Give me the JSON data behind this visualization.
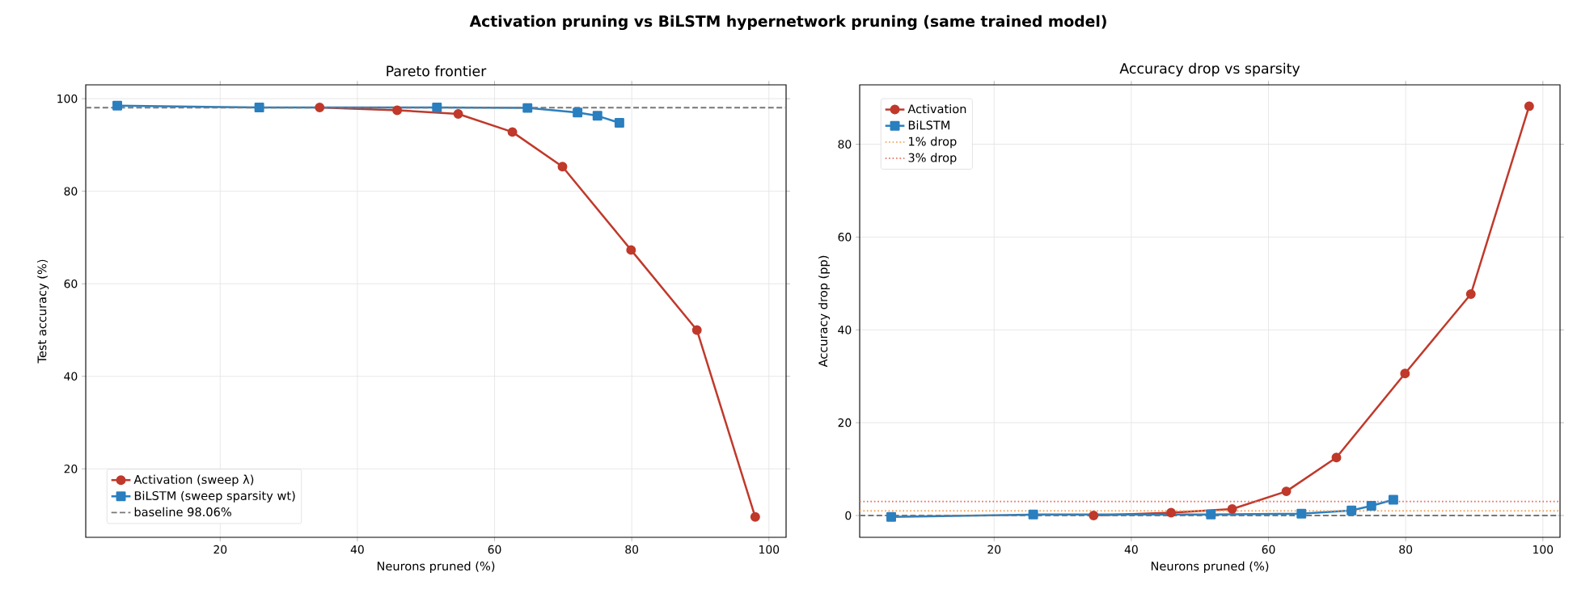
{
  "chart_data": [
    {
      "type": "line",
      "title": "Activation pruning vs BiLSTM hypernetwork pruning  (same trained model)",
      "subtitle": "Pareto frontier",
      "xlabel": "Neurons pruned (%)",
      "ylabel": "Test accuracy (%)",
      "xlim": [
        0.4,
        102.5
      ],
      "ylim": [
        5.2,
        103
      ],
      "xticks": [
        20,
        40,
        60,
        80,
        100
      ],
      "yticks": [
        20,
        40,
        60,
        80,
        100
      ],
      "grid": true,
      "legend": "bottom left",
      "series": [
        {
          "name": "Activation (sweep λ)",
          "color": "#c0392b",
          "marker": "circle",
          "x": [
            34.5,
            45.8,
            54.7,
            62.6,
            69.9,
            79.9,
            89.5,
            98.0
          ],
          "values": [
            98.1,
            97.5,
            96.7,
            92.8,
            85.3,
            67.3,
            50.0,
            9.6
          ]
        },
        {
          "name": "BiLSTM (sweep sparsity wt)",
          "color": "#2a7fbf",
          "marker": "square",
          "x": [
            5.0,
            25.7,
            51.6,
            64.8,
            72.1,
            75.0,
            78.2
          ],
          "values": [
            98.5,
            98.1,
            98.1,
            98.0,
            97.0,
            96.3,
            94.8
          ]
        }
      ],
      "ref_lines": [
        {
          "axis": "y",
          "value": 98.06,
          "label": "baseline 98.06%",
          "color": "#777777",
          "line_style": "dashed"
        }
      ]
    },
    {
      "type": "line",
      "title": "Accuracy drop vs sparsity",
      "xlabel": "Neurons pruned (%)",
      "ylabel": "Accuracy drop (pp)",
      "xlim": [
        0.4,
        102.5
      ],
      "ylim": [
        -4.7,
        92.8
      ],
      "xticks": [
        20,
        40,
        60,
        80,
        100
      ],
      "yticks": [
        0,
        20,
        40,
        60,
        80
      ],
      "grid": true,
      "legend": "top left",
      "series": [
        {
          "name": "Activation",
          "color": "#c0392b",
          "marker": "circle",
          "x": [
            34.5,
            45.8,
            54.7,
            62.6,
            69.9,
            79.9,
            89.5,
            98.0
          ],
          "values": [
            0.0,
            0.6,
            1.4,
            5.2,
            12.5,
            30.6,
            47.7,
            88.2
          ]
        },
        {
          "name": "BiLSTM",
          "color": "#2a7fbf",
          "marker": "square",
          "x": [
            5.0,
            25.7,
            51.6,
            64.8,
            72.1,
            75.0,
            78.2
          ],
          "values": [
            -0.3,
            0.2,
            0.2,
            0.4,
            1.1,
            2.1,
            3.4
          ]
        }
      ],
      "ref_lines": [
        {
          "axis": "y",
          "value": 0,
          "color": "#777777",
          "line_style": "dashed"
        },
        {
          "axis": "y",
          "value": 1,
          "label": "1% drop",
          "color": "#f5a35c",
          "line_style": "dotted"
        },
        {
          "axis": "y",
          "value": 3,
          "label": "3% drop",
          "color": "#e07060",
          "line_style": "dotted"
        }
      ]
    }
  ]
}
